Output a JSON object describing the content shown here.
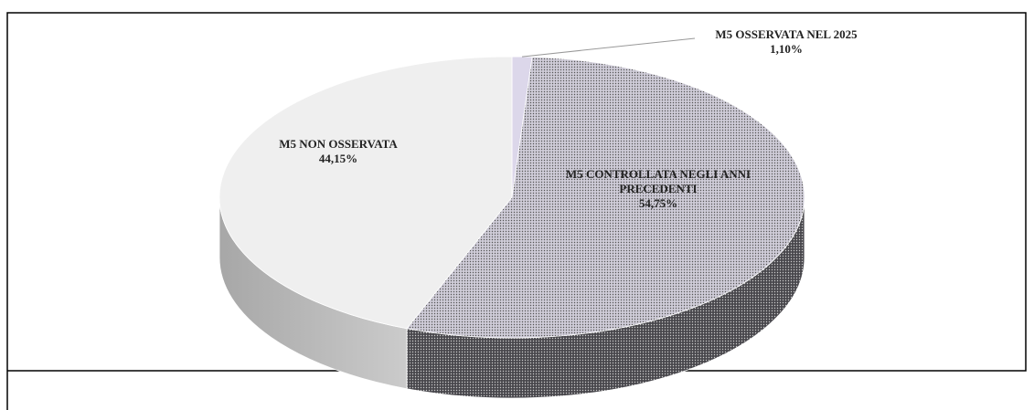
{
  "chart_data": {
    "type": "pie3d",
    "categories": [
      "M5 OSSERVATA NEL 2025",
      "M5 CONTROLLATA  NEGLI ANNI PRECEDENTI",
      "M5 NON OSSERVATA"
    ],
    "values": [
      1.1,
      54.75,
      44.15
    ],
    "value_labels": [
      "1,10%",
      "54,75%",
      "44,15%"
    ],
    "colors": [
      "#dcd7ea",
      "#cfccd8",
      "#efefef"
    ]
  }
}
